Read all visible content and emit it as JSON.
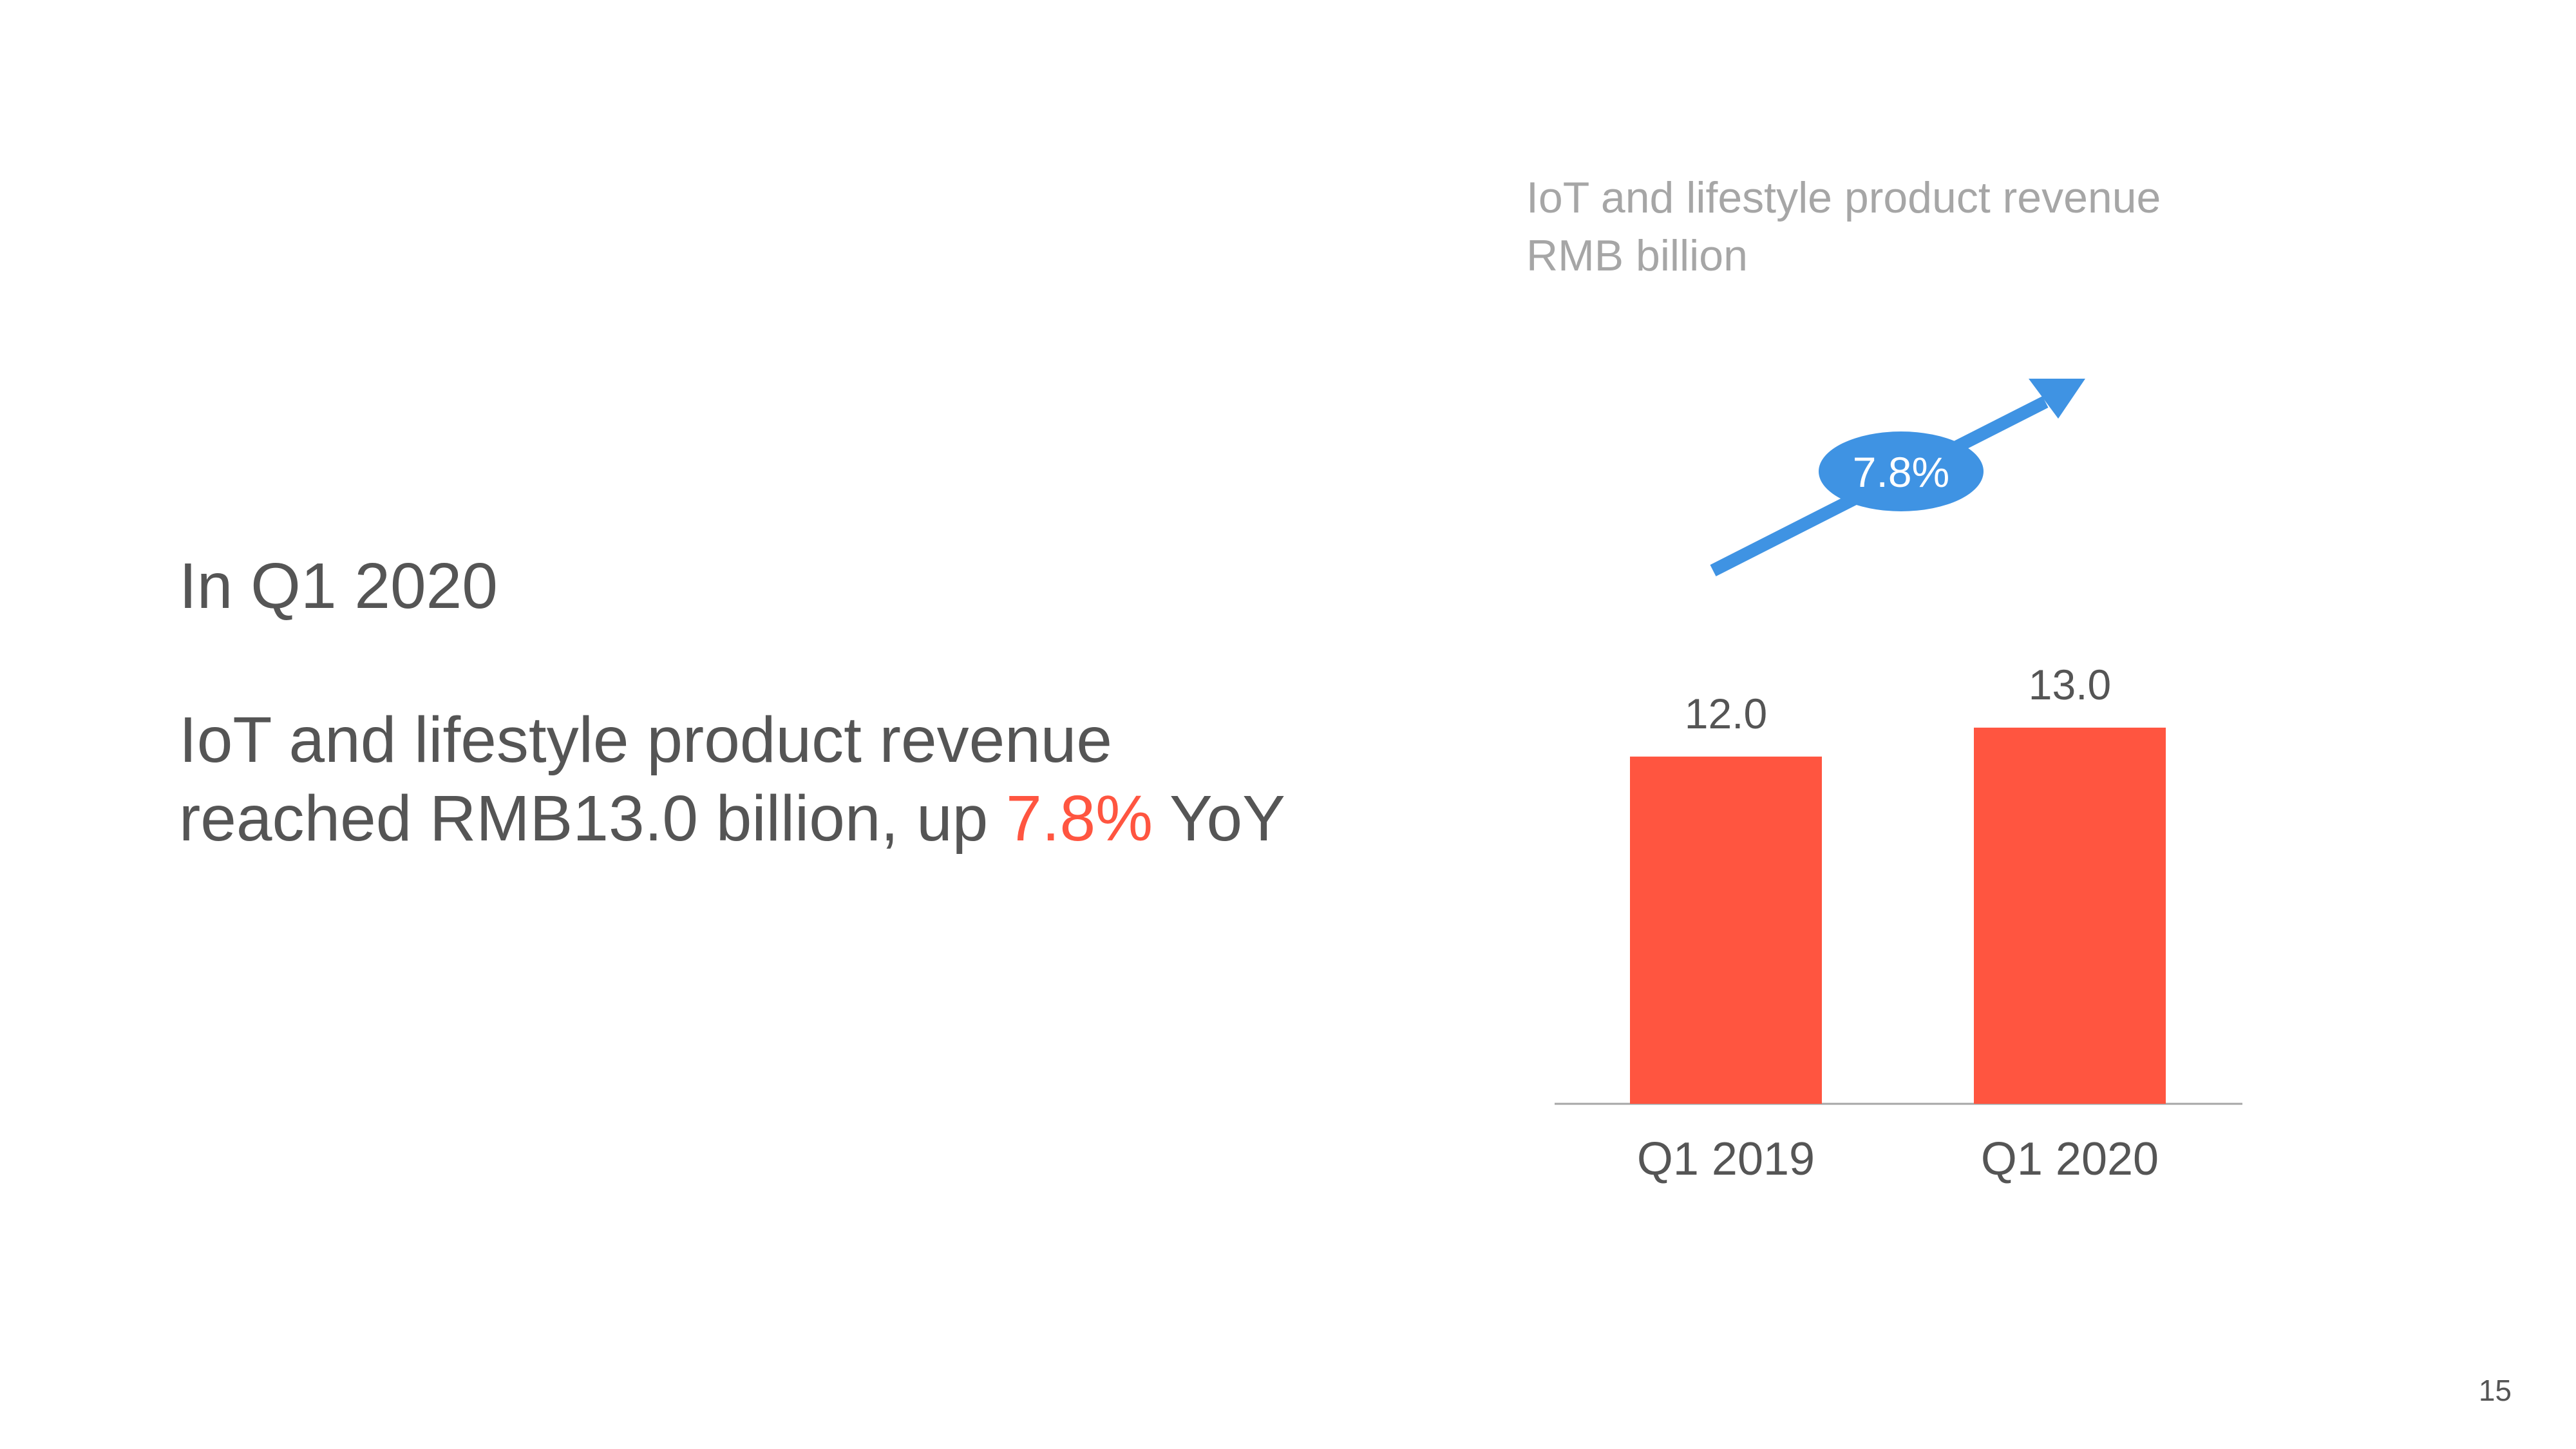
{
  "slide": {
    "heading": "In Q1 2020",
    "statement_line1": "IoT and lifestyle product revenue",
    "statement_line2_prefix": "reached RMB13.0 billion, up ",
    "statement_highlight": "7.8%",
    "statement_suffix": " YoY",
    "page_number": "15"
  },
  "colors": {
    "bar": "#ff5540",
    "arrow": "#3f93e3",
    "text": "#555555",
    "subtitle": "#a6a6a6",
    "axis": "#a6a6a6"
  },
  "chart_data": {
    "type": "bar",
    "title": "IoT and lifestyle product revenue",
    "ylabel": "RMB billion",
    "xlabel": "",
    "categories": [
      "Q1 2019",
      "Q1 2020"
    ],
    "values": [
      12.0,
      13.0
    ],
    "value_labels": [
      "12.0",
      "13.0"
    ],
    "ylim": [
      0,
      15
    ],
    "growth_label": "7.8%",
    "legend": "none",
    "grid": false
  }
}
